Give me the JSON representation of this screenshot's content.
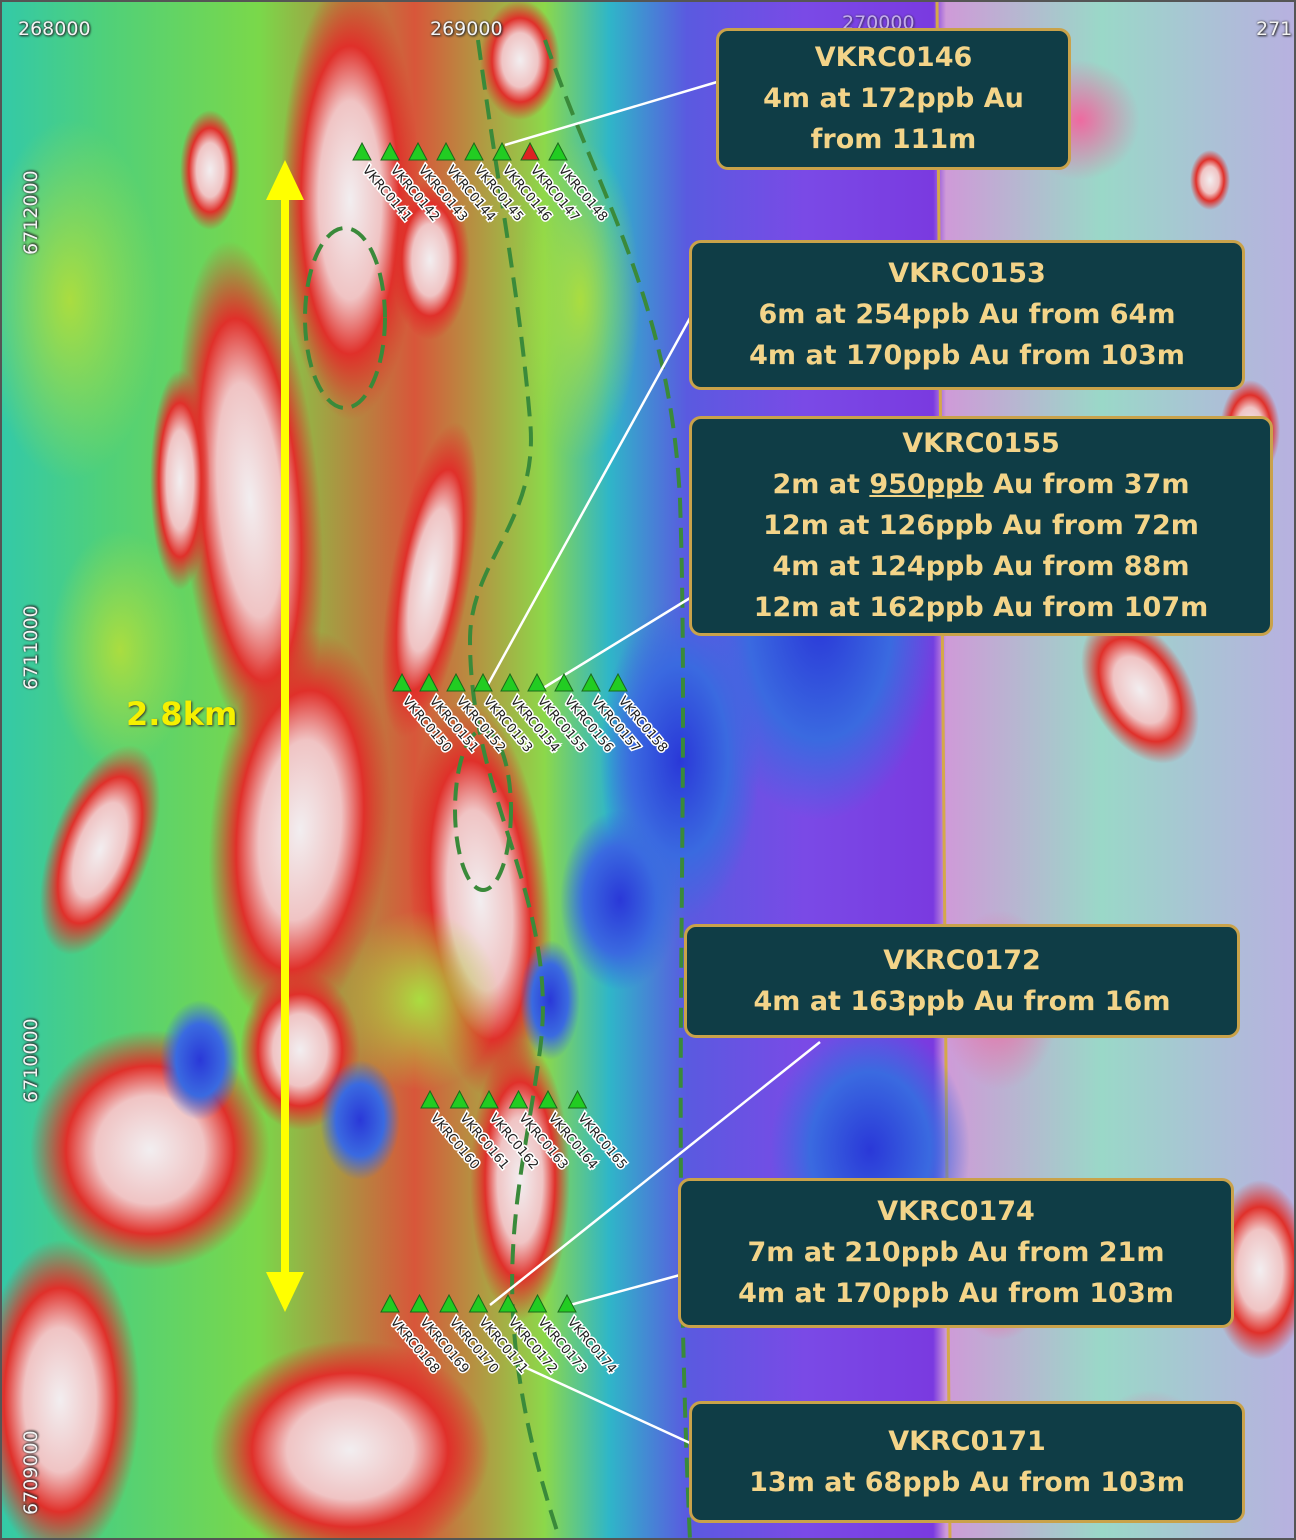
{
  "map": {
    "x_ticks": [
      "268000",
      "269000",
      "270000",
      "271"
    ],
    "y_ticks": [
      "6712000",
      "6711000",
      "6710000",
      "6709000"
    ],
    "distance_label": "2.8km",
    "colors": {
      "callout_bg": "#0f3d46",
      "callout_border": "#c9a24a",
      "callout_text": "#f3d489",
      "arrow": "#ffff00",
      "drillhole": "#22cc22",
      "drillhole_highlight": "#dd2222",
      "interpretation_line": "#3a8a3a"
    }
  },
  "drill_lines": [
    {
      "holes": [
        "VKRC0141",
        "VKRC0142",
        "VKRC0143",
        "VKRC0144",
        "VKRC0145",
        "VKRC0146",
        "VKRC0147",
        "VKRC0148"
      ]
    },
    {
      "holes": [
        "VKRC0150",
        "VKRC0151",
        "VKRC0152",
        "VKRC0153",
        "VKRC0154",
        "VKRC0155",
        "VKRC0156",
        "VKRC0157",
        "VKRC0158"
      ]
    },
    {
      "holes": [
        "VKRC0160",
        "VKRC0161",
        "VKRC0162",
        "VKRC0163",
        "VKRC0164",
        "VKRC0165"
      ]
    },
    {
      "holes": [
        "VKRC0168",
        "VKRC0169",
        "VKRC0170",
        "VKRC0171",
        "VKRC0172",
        "VKRC0173",
        "VKRC0174"
      ]
    }
  ],
  "callouts": [
    {
      "hole": "VKRC0146",
      "lines": [
        "4m at 172ppb Au",
        "from 111m"
      ]
    },
    {
      "hole": "VKRC0153",
      "lines": [
        "6m at 254ppb Au from 64m",
        "4m at 170ppb Au from 103m"
      ]
    },
    {
      "hole": "VKRC0155",
      "lines": [
        "12m at 126ppb Au from 72m",
        "4m at 124ppb Au from 88m",
        "12m at 162ppb Au from 107m"
      ],
      "first": {
        "pre": "2m at ",
        "grade": "950ppb",
        "post": " Au from 37m"
      }
    },
    {
      "hole": "VKRC0172",
      "lines": [
        "4m at 163ppb Au from 16m"
      ]
    },
    {
      "hole": "VKRC0174",
      "lines": [
        "7m at 210ppb Au from 21m",
        "4m at 170ppb Au from 103m"
      ]
    },
    {
      "hole": "VKRC0171",
      "lines": [
        "13m at 68ppb Au from 103m"
      ]
    }
  ]
}
